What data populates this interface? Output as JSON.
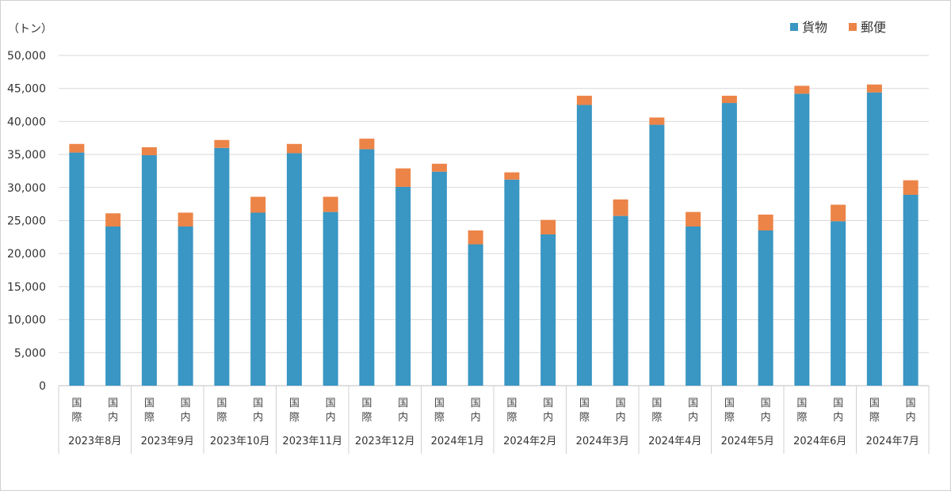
{
  "chart_data": {
    "type": "bar",
    "stacked": true,
    "unit_label": "（トン）",
    "ylim": [
      0,
      50000
    ],
    "yticks": [
      "0",
      "5,000",
      "10,000",
      "15,000",
      "20,000",
      "25,000",
      "30,000",
      "35,000",
      "40,000",
      "45,000",
      "50,000"
    ],
    "ytick_values": [
      0,
      5000,
      10000,
      15000,
      20000,
      25000,
      30000,
      35000,
      40000,
      45000,
      50000
    ],
    "grid": true,
    "legend_position": "top-right",
    "colors": {
      "cargo": "#3a96c3",
      "mail": "#ec8447"
    },
    "series_names": [
      "貨物",
      "郵便"
    ],
    "months": [
      "2023年8月",
      "2023年9月",
      "2023年10月",
      "2023年11月",
      "2023年12月",
      "2024年1月",
      "2024年2月",
      "2024年3月",
      "2024年4月",
      "2024年5月",
      "2024年6月",
      "2024年7月"
    ],
    "sub_categories": [
      [
        "国",
        "際"
      ],
      [
        "国",
        "内"
      ]
    ],
    "series": [
      {
        "name": "貨物",
        "values": [
          35300,
          24100,
          34900,
          24100,
          36000,
          26200,
          35200,
          26300,
          35800,
          30100,
          32400,
          21400,
          31200,
          22900,
          42500,
          25700,
          39500,
          24100,
          42800,
          23500,
          44200,
          24900,
          44400,
          28900
        ]
      },
      {
        "name": "郵便",
        "values": [
          1300,
          2000,
          1200,
          2100,
          1200,
          2400,
          1400,
          2300,
          1600,
          2800,
          1200,
          2100,
          1100,
          2200,
          1400,
          2500,
          1100,
          2200,
          1100,
          2400,
          1200,
          2500,
          1200,
          2200
        ]
      }
    ]
  }
}
